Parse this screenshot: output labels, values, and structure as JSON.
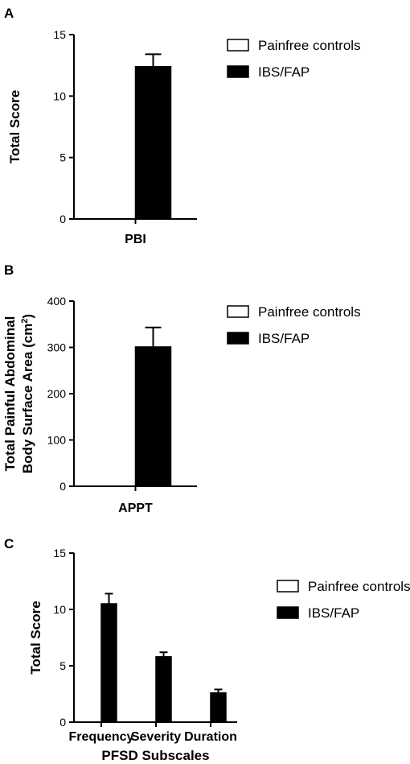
{
  "chart_data": [
    {
      "panel": "A",
      "type": "bar",
      "categories": [
        "PBI"
      ],
      "series": [
        {
          "name": "Painfree controls",
          "values": [
            0
          ],
          "errors": [
            0
          ]
        },
        {
          "name": "IBS/FAP",
          "values": [
            12.4
          ],
          "errors": [
            1.0
          ]
        }
      ],
      "xlabel": "",
      "ylabel": "Total Score",
      "ylim": [
        0,
        15
      ],
      "yticks": [
        0,
        5,
        10,
        15
      ],
      "grid": false,
      "legend_position": "right"
    },
    {
      "panel": "B",
      "type": "bar",
      "categories": [
        "APPT"
      ],
      "series": [
        {
          "name": "Painfree controls",
          "values": [
            0
          ],
          "errors": [
            0
          ]
        },
        {
          "name": "IBS/FAP",
          "values": [
            301
          ],
          "errors": [
            42
          ]
        }
      ],
      "xlabel": "",
      "ylabel_lines": [
        "Total Painful Abdominal",
        "Body Surface Area (cm",
        "2",
        ")"
      ],
      "ylim": [
        0,
        400
      ],
      "yticks": [
        0,
        100,
        200,
        300,
        400
      ],
      "grid": false,
      "legend_position": "right"
    },
    {
      "panel": "C",
      "type": "bar",
      "categories": [
        "Frequency",
        "Severity",
        "Duration"
      ],
      "series": [
        {
          "name": "Painfree controls",
          "values": [
            0,
            0,
            0
          ],
          "errors": [
            0,
            0,
            0
          ]
        },
        {
          "name": "IBS/FAP",
          "values": [
            10.5,
            5.8,
            2.6
          ],
          "errors": [
            0.9,
            0.4,
            0.3
          ]
        }
      ],
      "xlabel": "PFSD Subscales",
      "ylabel": "Total Score",
      "ylim": [
        0,
        15
      ],
      "yticks": [
        0,
        5,
        10,
        15
      ],
      "grid": false,
      "legend_position": "right"
    }
  ],
  "colors": {
    "controls_fill": "#ffffff",
    "ibs_fill": "#000000",
    "axis": "#000000"
  }
}
